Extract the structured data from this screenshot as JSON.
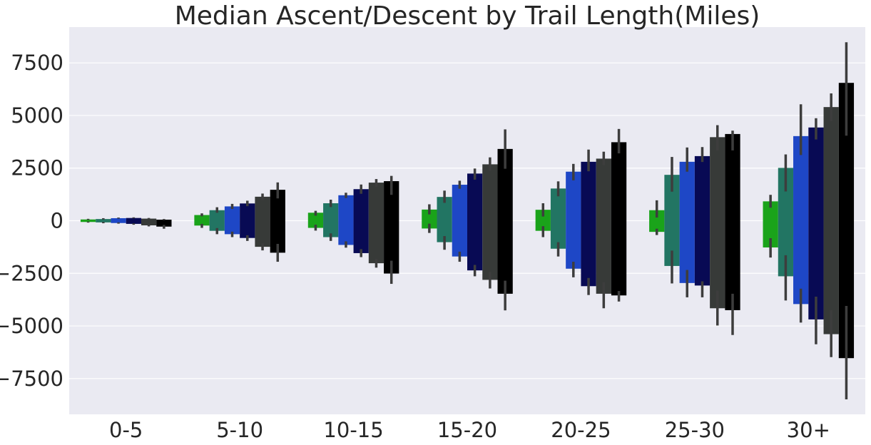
{
  "chart_data": {
    "type": "bar",
    "title": "Median Ascent/Descent by Trail Length(Miles)",
    "xlabel": "",
    "ylabel": "",
    "categories": [
      "0-5",
      "5-10",
      "10-15",
      "15-20",
      "20-25",
      "25-30",
      "30+"
    ],
    "ylim": [
      -9200,
      9200
    ],
    "yticks": [
      -7500,
      -5000,
      -2500,
      0,
      2500,
      5000,
      7500
    ],
    "ytick_labels": [
      "−7500",
      "−5000",
      "−2500",
      "0",
      "2500",
      "5000",
      "7500"
    ],
    "grid": true,
    "legend": "none",
    "background_color": "#eaeaf2",
    "series": [
      {
        "color": "#1aa31a",
        "ascent": [
          60,
          270,
          380,
          530,
          520,
          500,
          920
        ],
        "ascent_err": [
          [
            40,
            90
          ],
          [
            210,
            350
          ],
          [
            240,
            470
          ],
          [
            300,
            780
          ],
          [
            200,
            830
          ],
          [
            150,
            970
          ],
          [
            620,
            1230
          ]
        ],
        "descent": [
          -60,
          -230,
          -340,
          -370,
          -480,
          -530,
          -1270
        ],
        "descent_err": [
          [
            -40,
            -90
          ],
          [
            -150,
            -340
          ],
          [
            -190,
            -470
          ],
          [
            -140,
            -580
          ],
          [
            -260,
            -780
          ],
          [
            -380,
            -680
          ],
          [
            -830,
            -1750
          ]
        ]
      },
      {
        "color": "#227563",
        "ascent": [
          80,
          500,
          830,
          1130,
          1530,
          2180,
          2510
        ],
        "ascent_err": [
          [
            60,
            120
          ],
          [
            380,
            640
          ],
          [
            650,
            1000
          ],
          [
            850,
            1430
          ],
          [
            1160,
            1870
          ],
          [
            1380,
            3030
          ],
          [
            1390,
            3150
          ]
        ],
        "descent": [
          -80,
          -480,
          -780,
          -1020,
          -1330,
          -2150,
          -2640
        ],
        "descent_err": [
          [
            -60,
            -120
          ],
          [
            -350,
            -640
          ],
          [
            -600,
            -960
          ],
          [
            -730,
            -1380
          ],
          [
            -1020,
            -1700
          ],
          [
            -1420,
            -2980
          ],
          [
            -1640,
            -3790
          ]
        ]
      },
      {
        "color": "#1e47c6",
        "ascent": [
          120,
          680,
          1210,
          1710,
          2330,
          2800,
          4020
        ],
        "ascent_err": [
          [
            100,
            150
          ],
          [
            560,
            800
          ],
          [
            1080,
            1330
          ],
          [
            1520,
            1900
          ],
          [
            1920,
            2700
          ],
          [
            2330,
            3480
          ],
          [
            3120,
            5530
          ]
        ],
        "descent": [
          -110,
          -640,
          -1150,
          -1700,
          -2280,
          -2960,
          -3960
        ],
        "descent_err": [
          [
            -80,
            -140
          ],
          [
            -520,
            -780
          ],
          [
            -980,
            -1280
          ],
          [
            -1470,
            -1950
          ],
          [
            -1950,
            -2690
          ],
          [
            -2340,
            -3640
          ],
          [
            -3230,
            -4840
          ]
        ]
      },
      {
        "color": "#080a54",
        "ascent": [
          130,
          820,
          1500,
          2240,
          2800,
          3070,
          4430
        ],
        "ascent_err": [
          [
            110,
            160
          ],
          [
            690,
            950
          ],
          [
            1280,
            1720
          ],
          [
            1950,
            2480
          ],
          [
            2350,
            3380
          ],
          [
            2790,
            3500
          ],
          [
            3860,
            4870
          ]
        ],
        "descent": [
          -150,
          -820,
          -1540,
          -2360,
          -3110,
          -3080,
          -4690
        ],
        "descent_err": [
          [
            -120,
            -190
          ],
          [
            -690,
            -960
          ],
          [
            -1350,
            -1730
          ],
          [
            -2100,
            -2640
          ],
          [
            -2720,
            -3530
          ],
          [
            -2880,
            -3640
          ],
          [
            -3610,
            -5870
          ]
        ]
      },
      {
        "color": "#373a38",
        "ascent": [
          100,
          1140,
          1810,
          2680,
          2950,
          3970,
          5400
        ],
        "ascent_err": [
          [
            80,
            130
          ],
          [
            980,
            1290
          ],
          [
            1600,
            1980
          ],
          [
            2380,
            3010
          ],
          [
            2640,
            3280
          ],
          [
            3330,
            4540
          ],
          [
            4730,
            6050
          ]
        ],
        "descent": [
          -220,
          -1240,
          -2020,
          -2810,
          -3470,
          -4160,
          -5390
        ],
        "descent_err": [
          [
            -170,
            -270
          ],
          [
            -1070,
            -1410
          ],
          [
            -1810,
            -2230
          ],
          [
            -2440,
            -3220
          ],
          [
            -2920,
            -4160
          ],
          [
            -3320,
            -4980
          ],
          [
            -4250,
            -6480
          ]
        ]
      },
      {
        "color": "#000000",
        "ascent": [
          50,
          1470,
          1880,
          3410,
          3730,
          4120,
          6550
        ],
        "ascent_err": [
          [
            30,
            80
          ],
          [
            1060,
            1820
          ],
          [
            1230,
            2130
          ],
          [
            2470,
            4340
          ],
          [
            3200,
            4360
          ],
          [
            3340,
            4280
          ],
          [
            4040,
            8480
          ]
        ],
        "descent": [
          -280,
          -1520,
          -2510,
          -3470,
          -3550,
          -4250,
          -6530
        ],
        "descent_err": [
          [
            -200,
            -380
          ],
          [
            -1100,
            -1950
          ],
          [
            -1900,
            -3000
          ],
          [
            -2850,
            -4260
          ],
          [
            -3340,
            -3840
          ],
          [
            -3470,
            -5430
          ],
          [
            -4050,
            -8490
          ]
        ]
      }
    ]
  }
}
